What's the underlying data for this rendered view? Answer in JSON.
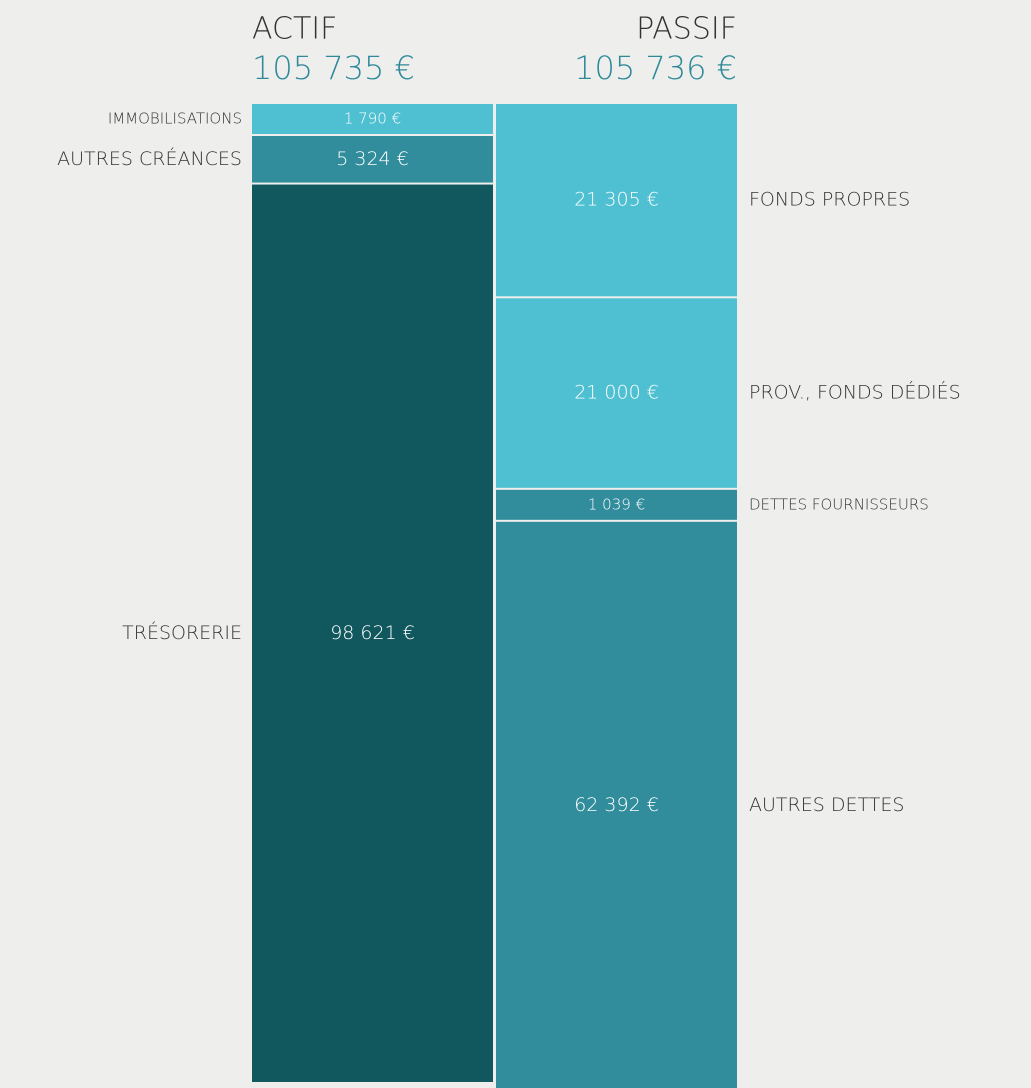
{
  "chart_data": {
    "type": "balance",
    "columns": [
      {
        "title": "ACTIF",
        "total": 105735,
        "total_label": "105 735 €",
        "segments": [
          {
            "name": "IMMOBILISATIONS",
            "value": 1790,
            "value_label": "1 790 €",
            "color": "#4fc0d1"
          },
          {
            "name": "AUTRES CRÉANCES",
            "value": 5324,
            "value_label": "5 324 €",
            "color": "#318d9c"
          },
          {
            "name": "TRÉSORERIE",
            "value": 98621,
            "value_label": "98 621 €",
            "color": "#10575e"
          }
        ]
      },
      {
        "title": "PASSIF",
        "total": 105736,
        "total_label": "105 736 €",
        "segments": [
          {
            "name": "FONDS PROPRES",
            "value": 21305,
            "value_label": "21 305 €",
            "color": "#4fc0d1"
          },
          {
            "name": "PROV., FONDS DÉDIÉS",
            "value": 21000,
            "value_label": "21 000 €",
            "color": "#4fc0d1"
          },
          {
            "name": "DETTES FOURNISSEURS",
            "value": 1039,
            "value_label": "1 039 €",
            "color": "#318d9c"
          },
          {
            "name": "AUTRES DETTES",
            "value": 62392,
            "value_label": "62 392 €",
            "color": "#318d9c"
          }
        ]
      }
    ]
  }
}
